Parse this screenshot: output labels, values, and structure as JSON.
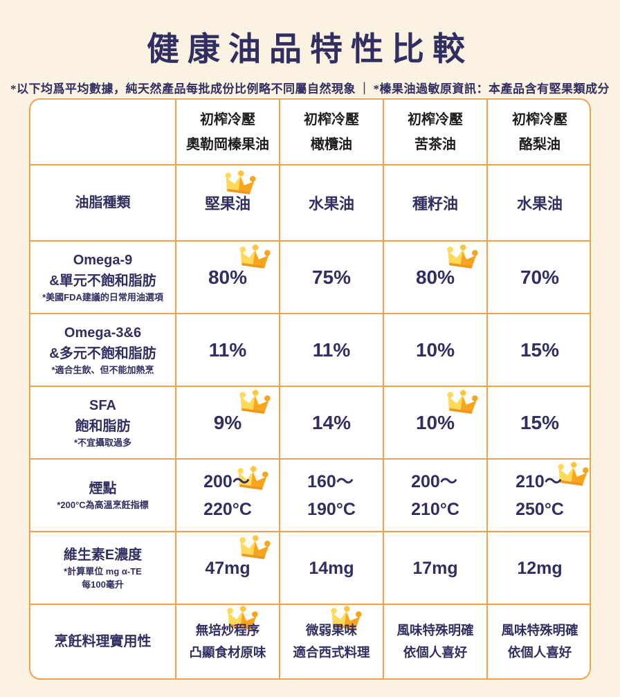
{
  "page": {
    "title": "健康油品特性比較",
    "subtitle_left": "*以下均爲平均數據，純天然產品每批成份比例略不同屬自然現象",
    "subtitle_divider": "｜",
    "subtitle_right": "*榛果油過敏原資訊：本產品含有堅果類成分"
  },
  "colors": {
    "background": "#FCF2E1",
    "table_border": "#F2A149",
    "navy_text": "#312F62",
    "header_text": "#1D1D20",
    "crown_light": "#FFD95A",
    "crown_mid": "#FFC53E",
    "crown_dark": "#F7A41F",
    "crown_band": "#F0961D"
  },
  "table": {
    "corner_label": "",
    "column_headers": [
      {
        "line1": "初榨冷壓",
        "line2": "奧勒岡榛果油"
      },
      {
        "line1": "初榨冷壓",
        "line2": "橄欖油"
      },
      {
        "line1": "初榨冷壓",
        "line2": "苦茶油"
      },
      {
        "line1": "初榨冷壓",
        "line2": "酪梨油"
      }
    ],
    "rows": [
      {
        "label_lines": [
          "油脂種類"
        ],
        "note_lines": [],
        "cells": [
          {
            "lines": [
              "堅果油"
            ],
            "crown": true
          },
          {
            "lines": [
              "水果油"
            ],
            "crown": false
          },
          {
            "lines": [
              "種籽油"
            ],
            "crown": false
          },
          {
            "lines": [
              "水果油"
            ],
            "crown": false
          }
        ]
      },
      {
        "label_lines": [
          "Omega-9",
          "&單元不飽和脂肪"
        ],
        "note_lines": [
          "*美國FDA建議的日常用油選項"
        ],
        "cells": [
          {
            "lines": [
              "80%"
            ],
            "crown": true
          },
          {
            "lines": [
              "75%"
            ],
            "crown": false
          },
          {
            "lines": [
              "80%"
            ],
            "crown": true
          },
          {
            "lines": [
              "70%"
            ],
            "crown": false
          }
        ]
      },
      {
        "label_lines": [
          "Omega-3&6",
          "&多元不飽和脂肪"
        ],
        "note_lines": [
          "*適合生飲、但不能加熱烹"
        ],
        "cells": [
          {
            "lines": [
              "11%"
            ],
            "crown": false
          },
          {
            "lines": [
              "11%"
            ],
            "crown": false
          },
          {
            "lines": [
              "10%"
            ],
            "crown": false
          },
          {
            "lines": [
              "15%"
            ],
            "crown": false
          }
        ]
      },
      {
        "label_lines": [
          "SFA",
          "飽和脂肪"
        ],
        "note_lines": [
          "*不宜攝取過多"
        ],
        "cells": [
          {
            "lines": [
              "9%"
            ],
            "crown": true
          },
          {
            "lines": [
              "14%"
            ],
            "crown": false
          },
          {
            "lines": [
              "10%"
            ],
            "crown": true
          },
          {
            "lines": [
              "15%"
            ],
            "crown": false
          }
        ]
      },
      {
        "label_lines": [
          "煙點"
        ],
        "note_lines": [
          "*200°C為高溫烹飪指標"
        ],
        "cells": [
          {
            "lines": [
              "200～",
              "220°C"
            ],
            "crown": true
          },
          {
            "lines": [
              "160～",
              "190°C"
            ],
            "crown": false
          },
          {
            "lines": [
              "200～",
              "210°C"
            ],
            "crown": false
          },
          {
            "lines": [
              "210～",
              "250°C"
            ],
            "crown": true
          }
        ]
      },
      {
        "label_lines": [
          "維生素E濃度"
        ],
        "note_lines": [
          "*計算單位 mg α-TE",
          "每100毫升"
        ],
        "cells": [
          {
            "lines": [
              "47mg"
            ],
            "crown": true
          },
          {
            "lines": [
              "14mg"
            ],
            "crown": false
          },
          {
            "lines": [
              "17mg"
            ],
            "crown": false
          },
          {
            "lines": [
              "12mg"
            ],
            "crown": false
          }
        ]
      },
      {
        "label_lines": [
          "烹飪料理實用性"
        ],
        "note_lines": [],
        "cells": [
          {
            "lines": [
              "無培炒程序",
              "凸顯食材原味"
            ],
            "crown": true
          },
          {
            "lines": [
              "微弱果味",
              "適合西式料理"
            ],
            "crown": true
          },
          {
            "lines": [
              "風味特殊明確",
              "依個人喜好"
            ],
            "crown": false
          },
          {
            "lines": [
              "風味特殊明確",
              "依個人喜好"
            ],
            "crown": false
          }
        ]
      }
    ]
  },
  "chart_data": {
    "type": "table",
    "title": "健康油品特性比較",
    "footnote": "*以下均爲平均數據，純天然產品每批成份比例略不同屬自然現象｜*榛果油過敏原資訊：本產品含有堅果類成分",
    "columns": [
      "初榨冷壓奧勒岡榛果油",
      "初榨冷壓橄欖油",
      "初榨冷壓苦茶油",
      "初榨冷壓酪梨油"
    ],
    "rows": [
      {
        "attribute": "油脂種類",
        "values": [
          "堅果油",
          "水果油",
          "種籽油",
          "水果油"
        ],
        "best_columns": [
          0
        ]
      },
      {
        "attribute": "Omega-9 &單元不飽和脂肪（*美國FDA建議的日常用油選項）",
        "values": [
          "80%",
          "75%",
          "80%",
          "70%"
        ],
        "best_columns": [
          0,
          2
        ]
      },
      {
        "attribute": "Omega-3&6 &多元不飽和脂肪（*適合生飲、但不能加熱烹）",
        "values": [
          "11%",
          "11%",
          "10%",
          "15%"
        ],
        "best_columns": []
      },
      {
        "attribute": "SFA 飽和脂肪（*不宜攝取過多）",
        "values": [
          "9%",
          "14%",
          "10%",
          "15%"
        ],
        "best_columns": [
          0,
          2
        ]
      },
      {
        "attribute": "煙點（*200°C為高溫烹飪指標）",
        "values": [
          "200～220°C",
          "160～190°C",
          "200～210°C",
          "210～250°C"
        ],
        "best_columns": [
          0,
          3
        ]
      },
      {
        "attribute": "維生素E濃度（*計算單位 mg α-TE 每100毫升）",
        "values": [
          "47mg",
          "14mg",
          "17mg",
          "12mg"
        ],
        "best_columns": [
          0
        ]
      },
      {
        "attribute": "烹飪料理實用性",
        "values": [
          "無培炒程序 凸顯食材原味",
          "微弱果味 適合西式料理",
          "風味特殊明確 依個人喜好",
          "風味特殊明確 依個人喜好"
        ],
        "best_columns": [
          0,
          1
        ]
      }
    ]
  }
}
